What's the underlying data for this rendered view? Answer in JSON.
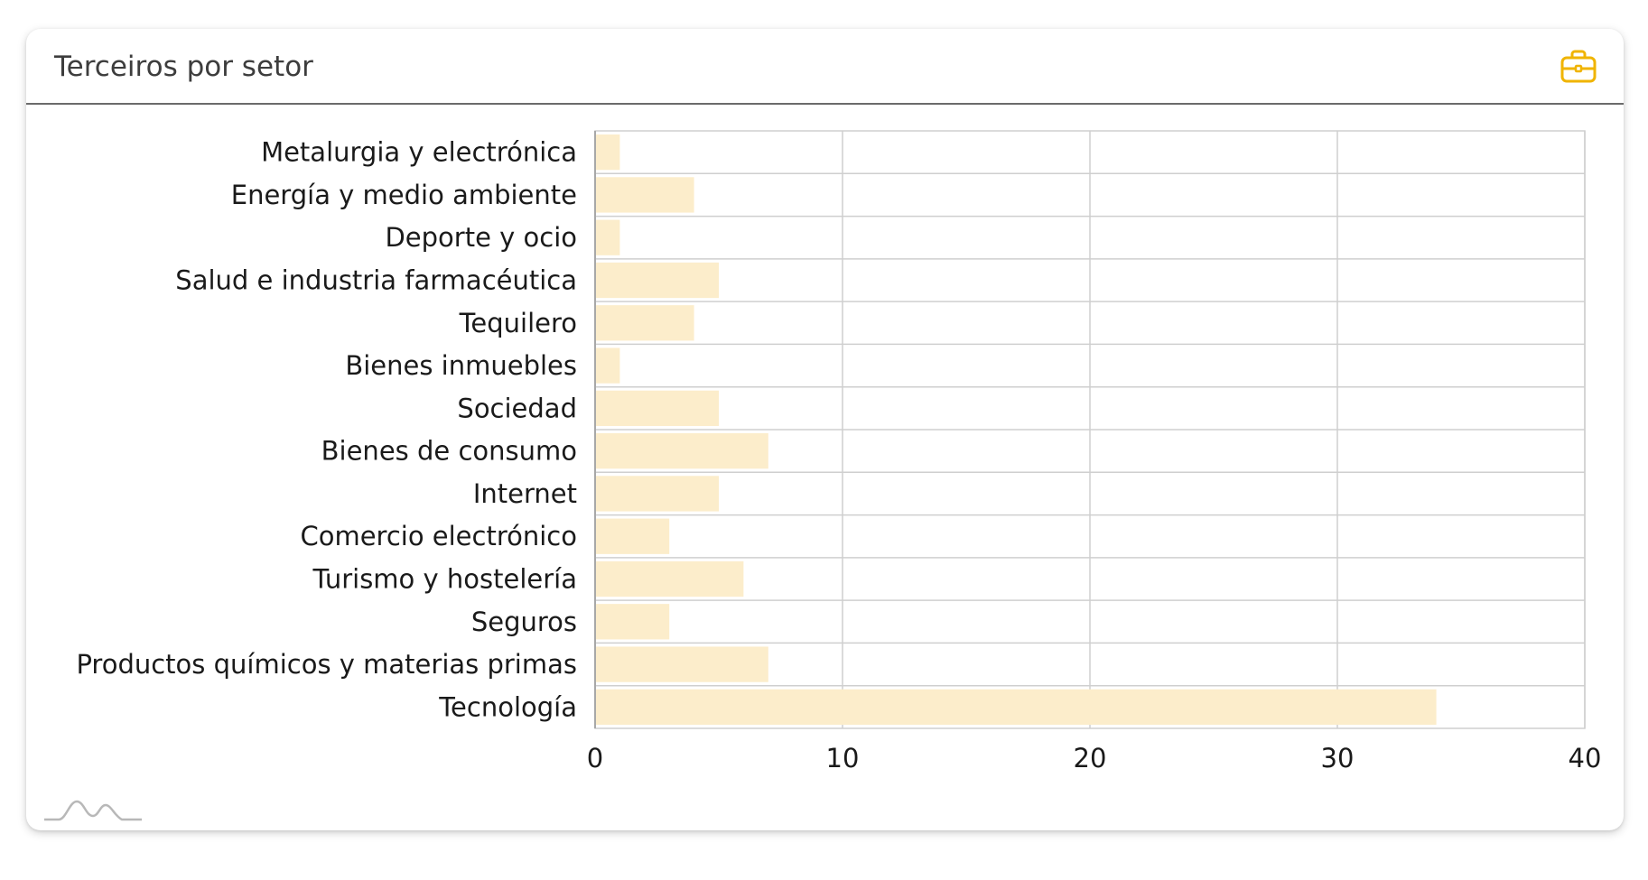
{
  "card": {
    "title": "Terceiros por setor",
    "icon": "briefcase-icon",
    "icon_color": "#F0B400"
  },
  "chart_data": {
    "type": "bar",
    "orientation": "horizontal",
    "title": "Terceiros por setor",
    "categories": [
      "Metalurgia y electrónica",
      "Energía y medio ambiente",
      "Deporte y ocio",
      "Salud e industria farmacéutica",
      "Tequilero",
      "Bienes inmuebles",
      "Sociedad",
      "Bienes de consumo",
      "Internet",
      "Comercio electrónico",
      "Turismo y hostelería",
      "Seguros",
      "Productos químicos y materias primas",
      "Tecnología"
    ],
    "values": [
      1,
      4,
      1,
      5,
      4,
      1,
      5,
      7,
      5,
      3,
      6,
      3,
      7,
      34
    ],
    "xlim": [
      0,
      40
    ],
    "xticks": [
      0,
      10,
      20,
      30,
      40
    ],
    "xlabel": "",
    "ylabel": "",
    "grid": true,
    "bar_color": "#FCEDCB",
    "grid_color": "#cfcfcf"
  }
}
